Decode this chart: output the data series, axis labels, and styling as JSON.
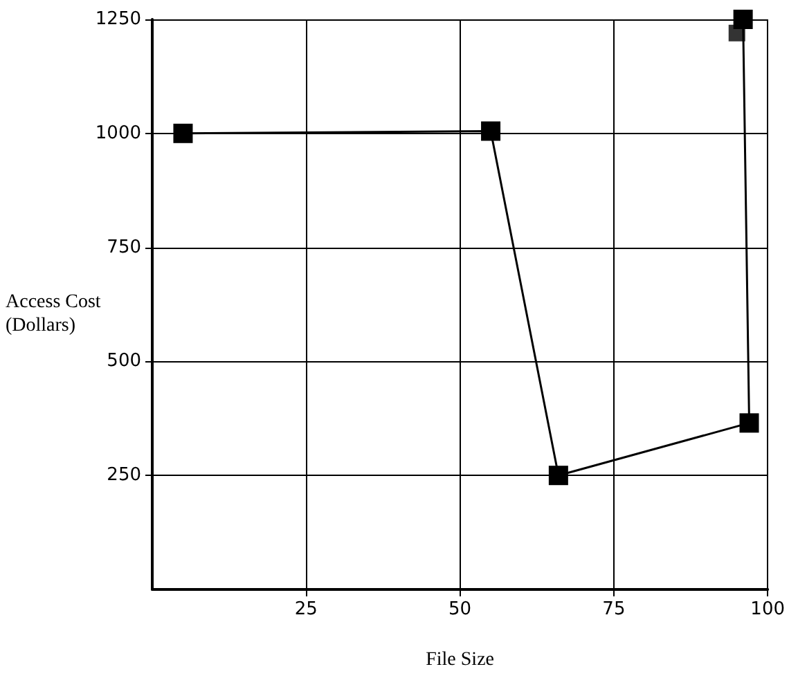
{
  "chart_data": {
    "type": "line",
    "xlabel": "File Size",
    "ylabel": "Access Cost (Dollars)",
    "xlim": [
      0,
      100
    ],
    "xticks": [
      25,
      50,
      75,
      100
    ],
    "ylim": [
      0,
      1250
    ],
    "yticks": [
      250,
      500,
      750,
      1000,
      1250
    ],
    "grid": true,
    "marker": "square",
    "line_style": "solid",
    "series": [
      {
        "color": "#000000",
        "x": [
          5,
          55,
          66,
          97,
          96
        ],
        "values": [
          1000,
          1005,
          250,
          365,
          1250
        ]
      },
      {
        "type": "scatter",
        "color": "#000000",
        "x": [
          95
        ],
        "values": [
          1220
        ]
      }
    ]
  }
}
